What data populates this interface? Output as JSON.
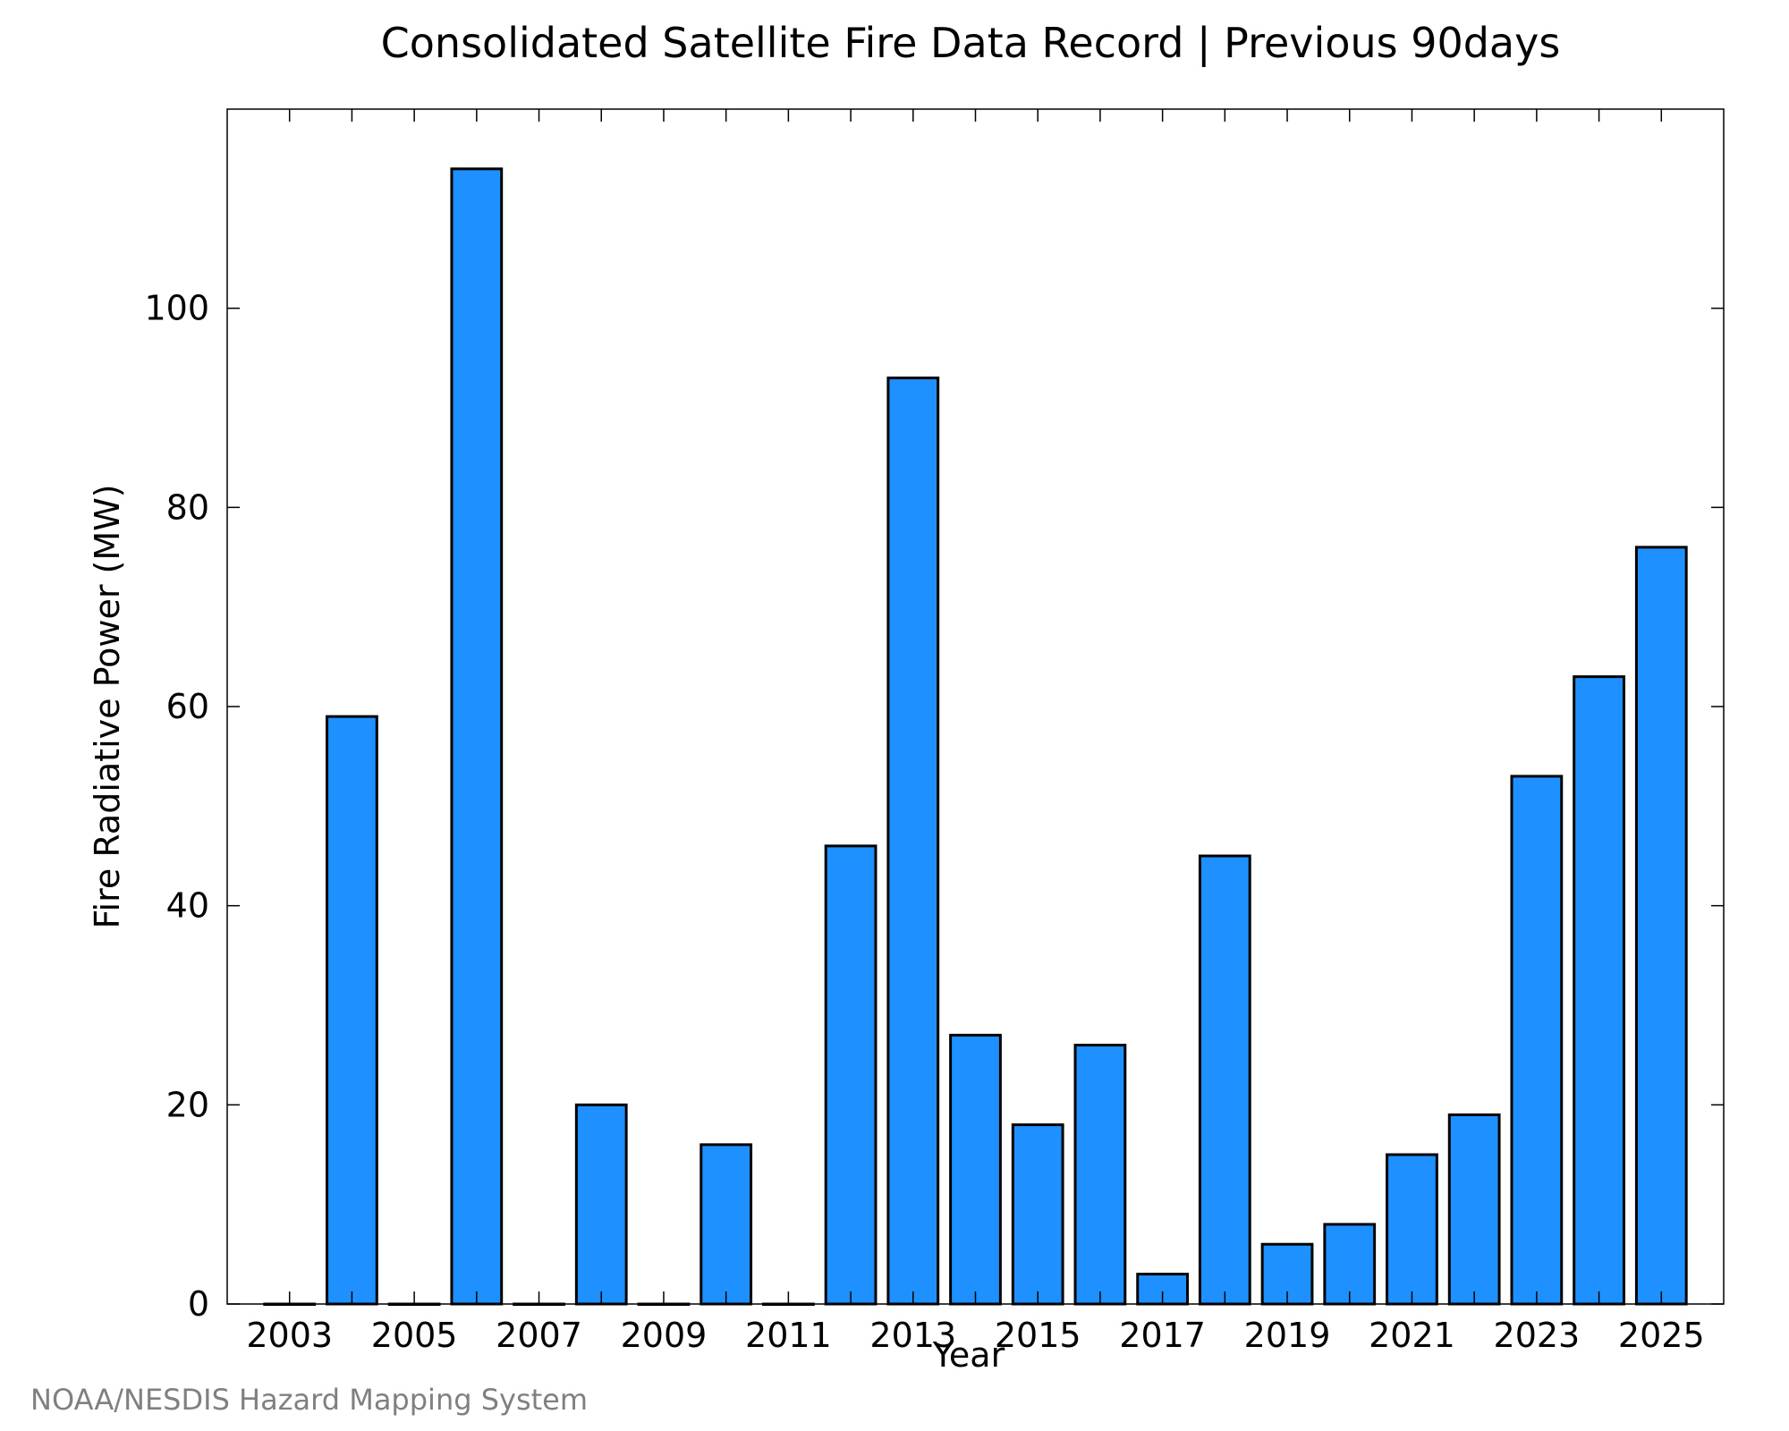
{
  "chart_data": {
    "type": "bar",
    "title": "Consolidated Satellite Fire Data Record | Previous 90days",
    "xlabel": "Year",
    "ylabel": "Fire Radiative Power (MW)",
    "categories": [
      "2003",
      "2004",
      "2005",
      "2006",
      "2007",
      "2008",
      "2009",
      "2010",
      "2011",
      "2012",
      "2013",
      "2014",
      "2015",
      "2016",
      "2017",
      "2018",
      "2019",
      "2020",
      "2021",
      "2022",
      "2023",
      "2024",
      "2025"
    ],
    "values": [
      0,
      59,
      0,
      114,
      0,
      20,
      0,
      16,
      0,
      46,
      93,
      27,
      18,
      26,
      3,
      45,
      6,
      8,
      15,
      19,
      53,
      63,
      76
    ],
    "x_tick_labels": [
      "2003",
      "2005",
      "2007",
      "2009",
      "2011",
      "2013",
      "2015",
      "2017",
      "2019",
      "2021",
      "2023",
      "2025"
    ],
    "y_ticks": [
      0,
      20,
      40,
      60,
      80,
      100
    ],
    "ylim": [
      0,
      120
    ],
    "xlim": [
      2002.0,
      2026.0
    ],
    "grid": false,
    "legend": "none",
    "bar_color": "#1e90ff"
  },
  "footer": {
    "credit": "NOAA/NESDIS Hazard Mapping System"
  }
}
